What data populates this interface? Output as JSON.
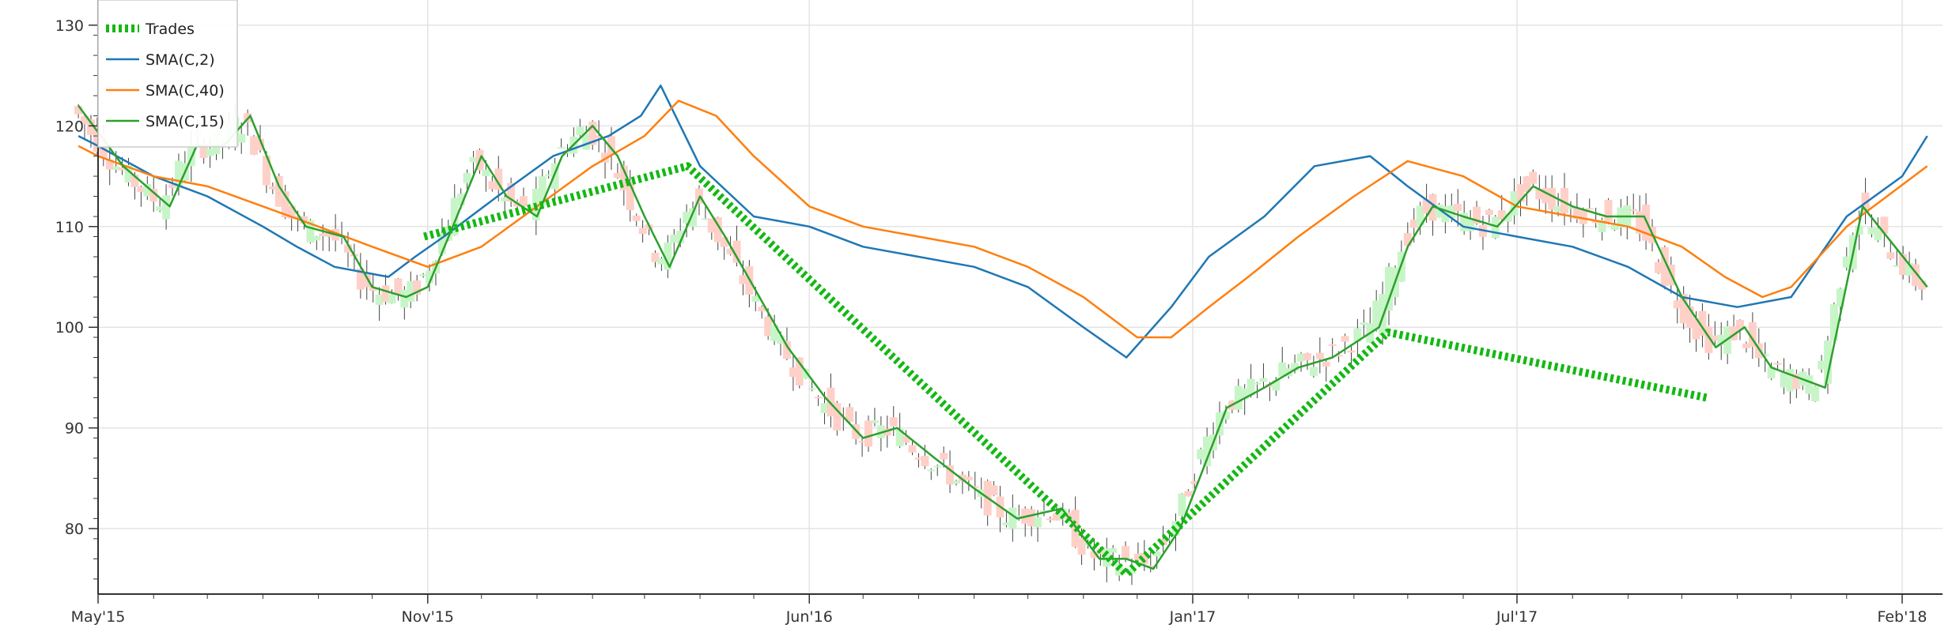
{
  "chart_data": {
    "type": "line",
    "x_ticks": [
      "May'15",
      "Nov'15",
      "Jun'16",
      "Jan'17",
      "Jul'17",
      "Feb'18"
    ],
    "y_ticks": [
      80,
      90,
      100,
      110,
      120,
      130
    ],
    "ylim": [
      73.5,
      132.5
    ],
    "grid": true,
    "legend_position": "top-left",
    "legend": [
      {
        "label": "Trades",
        "color": "#14b814",
        "style": "dotted"
      },
      {
        "label": "SMA(C,2)",
        "color": "#1f77b4",
        "style": "solid"
      },
      {
        "label": "SMA(C,40)",
        "color": "#ff7f0e",
        "style": "solid"
      },
      {
        "label": "SMA(C,15)",
        "color": "#2ca02c",
        "style": "solid"
      }
    ],
    "candle_colors": {
      "up": "#c8f5c8",
      "down": "#ffd0c8",
      "wick": "#444444"
    },
    "series": [
      {
        "name": "SMA(C,2)",
        "color": "#1f77b4",
        "x": [
          "2015-04-20",
          "2015-05-01",
          "2015-06-01",
          "2015-07-01",
          "2015-08-01",
          "2015-08-20",
          "2015-09-10",
          "2015-10-10",
          "2015-10-25",
          "2015-11-10",
          "2015-12-10",
          "2016-01-10",
          "2016-02-10",
          "2016-02-28",
          "2016-03-10",
          "2016-04-01",
          "2016-05-01",
          "2016-06-01",
          "2016-07-01",
          "2016-08-01",
          "2016-09-01",
          "2016-10-01",
          "2016-11-01",
          "2016-11-25",
          "2016-12-20",
          "2017-01-10",
          "2017-02-10",
          "2017-03-10",
          "2017-04-10",
          "2017-05-01",
          "2017-06-01",
          "2017-07-01",
          "2017-08-01",
          "2017-09-01",
          "2017-10-01",
          "2017-11-01",
          "2017-12-01",
          "2018-01-01",
          "2018-02-01",
          "2018-02-15"
        ],
        "y": [
          119,
          118,
          115,
          113,
          110,
          108,
          106,
          105,
          107,
          109,
          113,
          117,
          119,
          121,
          124,
          116,
          111,
          110,
          108,
          107,
          106,
          104,
          100,
          97,
          102,
          107,
          111,
          116,
          117,
          114,
          110,
          109,
          108,
          106,
          103,
          102,
          103,
          111,
          115,
          119
        ]
      },
      {
        "name": "SMA(C,40)",
        "color": "#ff7f0e",
        "x": [
          "2015-04-20",
          "2015-05-01",
          "2015-06-01",
          "2015-07-01",
          "2015-08-01",
          "2015-09-01",
          "2015-10-01",
          "2015-11-01",
          "2015-12-01",
          "2016-01-01",
          "2016-02-01",
          "2016-03-01",
          "2016-03-20",
          "2016-04-10",
          "2016-05-01",
          "2016-06-01",
          "2016-07-01",
          "2016-08-01",
          "2016-09-01",
          "2016-10-01",
          "2016-11-01",
          "2016-12-01",
          "2016-12-20",
          "2017-01-10",
          "2017-02-01",
          "2017-03-01",
          "2017-04-01",
          "2017-05-01",
          "2017-06-01",
          "2017-07-01",
          "2017-08-01",
          "2017-09-01",
          "2017-10-01",
          "2017-10-25",
          "2017-11-15",
          "2017-12-01",
          "2018-01-01",
          "2018-02-15"
        ],
        "y": [
          118,
          117,
          115,
          114,
          112,
          110,
          108,
          106,
          108,
          112,
          116,
          119,
          122.5,
          121,
          117,
          112,
          110,
          109,
          108,
          106,
          103,
          99,
          99,
          102,
          105,
          109,
          113,
          116.5,
          115,
          112,
          111,
          110,
          108,
          105,
          103,
          104,
          110,
          116
        ]
      },
      {
        "name": "SMA(C,15)",
        "color": "#2ca02c",
        "x": [
          "2015-04-20",
          "2015-05-15",
          "2015-06-10",
          "2015-06-25",
          "2015-07-10",
          "2015-07-25",
          "2015-08-10",
          "2015-08-25",
          "2015-09-15",
          "2015-10-01",
          "2015-10-20",
          "2015-11-01",
          "2015-11-15",
          "2015-12-01",
          "2015-12-15",
          "2016-01-01",
          "2016-01-15",
          "2016-02-01",
          "2016-02-15",
          "2016-03-01",
          "2016-03-15",
          "2016-04-01",
          "2016-04-15",
          "2016-05-01",
          "2016-05-20",
          "2016-06-10",
          "2016-07-01",
          "2016-07-20",
          "2016-08-10",
          "2016-09-01",
          "2016-09-25",
          "2016-10-20",
          "2016-11-10",
          "2016-11-25",
          "2016-12-10",
          "2016-12-25",
          "2017-01-20",
          "2017-02-10",
          "2017-03-01",
          "2017-03-20",
          "2017-04-15",
          "2017-05-01",
          "2017-05-15",
          "2017-06-01",
          "2017-06-20",
          "2017-07-10",
          "2017-08-01",
          "2017-08-20",
          "2017-09-10",
          "2017-10-01",
          "2017-10-20",
          "2017-11-05",
          "2017-11-20",
          "2017-12-05",
          "2017-12-20",
          "2018-01-10",
          "2018-02-15"
        ],
        "y": [
          122,
          116,
          112,
          118,
          118,
          121,
          114,
          110,
          109,
          104,
          103,
          104,
          110,
          117,
          113,
          111,
          117,
          120,
          117,
          111,
          106,
          113,
          109,
          104,
          98,
          93,
          89,
          90,
          87,
          84,
          81,
          82,
          77,
          77,
          76,
          80,
          92,
          94,
          96,
          97,
          100,
          108,
          112,
          111,
          110,
          114,
          112,
          111,
          111,
          103,
          98,
          100,
          96,
          95,
          94,
          112,
          104
        ]
      },
      {
        "name": "Trades",
        "color": "#14b814",
        "x": [
          "2015-10-30",
          "2016-03-25",
          "2016-11-25",
          "2017-04-20",
          "2017-10-15"
        ],
        "y": [
          109,
          116,
          75.5,
          99.5,
          93
        ]
      }
    ]
  }
}
